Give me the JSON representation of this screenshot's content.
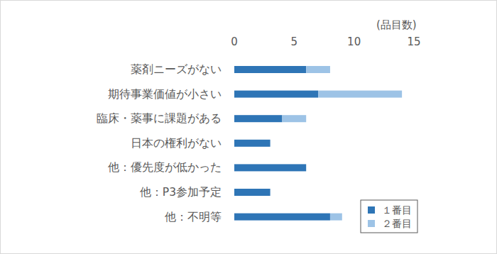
{
  "chart_data": {
    "type": "bar",
    "orientation": "horizontal",
    "stacked": true,
    "xlabel": "(品目数)",
    "categories": [
      "薬剤ニーズがない",
      "期待事業価値が小さい",
      "臨床・薬事に課題がある",
      "日本の権利がない",
      "他：優先度が低かった",
      "他：P3参加予定",
      "他：不明等"
    ],
    "series": [
      {
        "name": "１番目",
        "color": "#2e75b6",
        "values": [
          6,
          7,
          4,
          3,
          6,
          3,
          8
        ]
      },
      {
        "name": "２番目",
        "color": "#9dc3e6",
        "values": [
          2,
          7,
          2,
          0,
          0,
          0,
          1
        ]
      }
    ],
    "xlim": [
      0,
      15
    ],
    "xticks": [
      0,
      5,
      10,
      15
    ],
    "grid": false,
    "legend": "bottom-right"
  }
}
